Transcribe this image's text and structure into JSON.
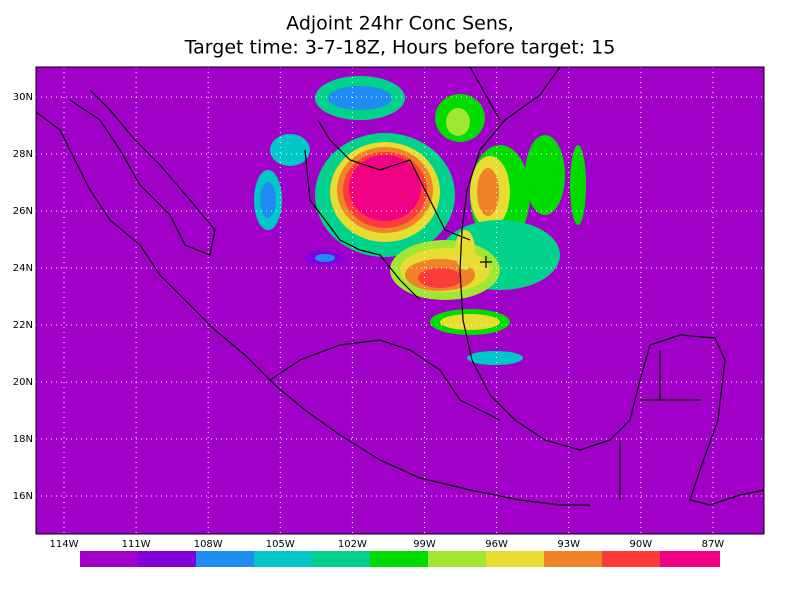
{
  "title": [
    "Adjoint 24hr Conc Sens,",
    "Target time: 3-7-18Z, Hours before target: 15"
  ],
  "lat_labels": [
    "30N",
    "28N",
    "26N",
    "24N",
    "22N",
    "20N",
    "18N",
    "16N"
  ],
  "lon_labels": [
    "114W",
    "111W",
    "108W",
    "105W",
    "102W",
    "99W",
    "96W",
    "93W",
    "90W",
    "87W"
  ]
}
